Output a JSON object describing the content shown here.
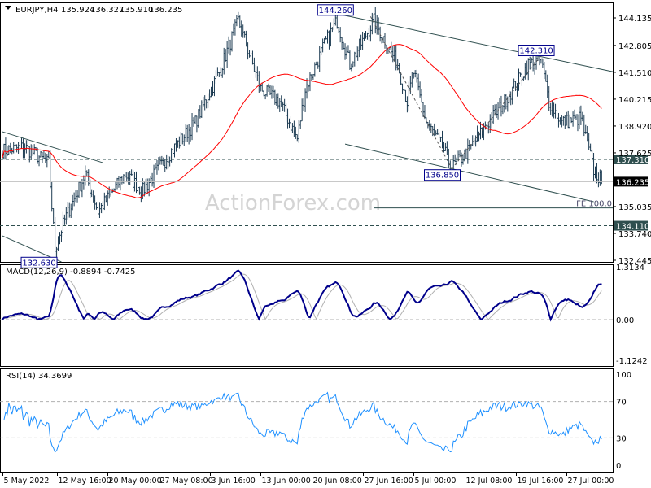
{
  "header": {
    "symbol": "EURJPY,H4",
    "open": "135.924",
    "high": "136.327",
    "low": "135.910",
    "close": "136.235"
  },
  "watermark": "ActionForex.com",
  "colors": {
    "bars": "#1c3b52",
    "ma": "#ff0000",
    "macd": "#00008b",
    "signal": "#b0b0b0",
    "rsi": "#1e90ff",
    "level_box": "#2f4f4f"
  },
  "chart_data": [
    {
      "type": "ohlc",
      "title": "EURJPY,H4",
      "y_ticks": [
        "144.135",
        "142.805",
        "141.510",
        "140.215",
        "138.920",
        "137.625",
        "135.035",
        "133.740",
        "132.445"
      ],
      "ylim": [
        132.445,
        144.135
      ],
      "x_ticks": [
        "5 May 2022",
        "12 May 16:00",
        "20 May 00:00",
        "27 May 08:00",
        "3 Jun 16:00",
        "13 Jun 00:00",
        "20 Jun 08:00",
        "27 Jun 16:00",
        "5 Jul 00:00",
        "12 Jul 08:00",
        "19 Jul 16:00",
        "27 Jul 00:00"
      ],
      "x_tick_dates": [
        "2022-05-05 00:00",
        "2022-05-12 16:00",
        "2022-05-20 00:00",
        "2022-05-27 08:00",
        "2022-06-03 16:00",
        "2022-06-13 00:00",
        "2022-06-20 08:00",
        "2022-06-27 16:00",
        "2022-07-05 00:00",
        "2022-07-12 08:00",
        "2022-07-19 16:00",
        "2022-07-27 00:00"
      ],
      "approx_close_path": [
        [
          "2022-05-05 04:00",
          137.74
        ],
        [
          "2022-05-09 08:00",
          137.9
        ],
        [
          "2022-05-11 20:00",
          137.1
        ],
        [
          "2022-05-12 12:00",
          133.0
        ],
        [
          "2022-05-13 12:00",
          134.4
        ],
        [
          "2022-05-17 16:00",
          136.6
        ],
        [
          "2022-05-19 00:00",
          134.8
        ],
        [
          "2022-05-23 20:00",
          136.6
        ],
        [
          "2022-05-25 16:00",
          135.8
        ],
        [
          "2022-05-30 16:00",
          137.7
        ],
        [
          "2022-06-02 04:00",
          139.1
        ],
        [
          "2022-06-06 16:00",
          141.5
        ],
        [
          "2022-06-08 16:00",
          144.0
        ],
        [
          "2022-06-09 16:00",
          142.6
        ],
        [
          "2022-06-13 00:00",
          140.7
        ],
        [
          "2022-06-15 00:00",
          140.1
        ],
        [
          "2022-06-16 20:00",
          138.3
        ],
        [
          "2022-06-17 16:00",
          140.7
        ],
        [
          "2022-06-21 20:00",
          143.0
        ],
        [
          "2022-06-23 00:00",
          144.0
        ],
        [
          "2022-06-24 08:00",
          141.9
        ],
        [
          "2022-06-28 20:00",
          144.0
        ],
        [
          "2022-07-01 08:00",
          141.9
        ],
        [
          "2022-07-04 08:00",
          140.1
        ],
        [
          "2022-07-05 00:00",
          141.5
        ],
        [
          "2022-07-06 08:00",
          139.1
        ],
        [
          "2022-07-08 00:00",
          137.9
        ],
        [
          "2022-07-11 00:00",
          136.9
        ],
        [
          "2022-07-12 16:00",
          137.7
        ],
        [
          "2022-07-14 20:00",
          139.1
        ],
        [
          "2022-07-18 20:00",
          140.3
        ],
        [
          "2022-07-21 00:00",
          141.9
        ],
        [
          "2022-07-22 08:00",
          142.1
        ],
        [
          "2022-07-25 04:00",
          140.1
        ],
        [
          "2022-07-26 12:00",
          139.1
        ],
        [
          "2022-07-28 12:00",
          139.3
        ],
        [
          "2022-07-29 20:00",
          136.8
        ],
        [
          "2022-08-01 16:00",
          136.235
        ]
      ],
      "price_labels": [
        {
          "text": "144.260",
          "date": "2022-06-22 20:00",
          "price": 144.26
        },
        {
          "text": "142.310",
          "date": "2022-07-21 20:00",
          "price": 142.31
        },
        {
          "text": "136.850",
          "date": "2022-07-08 00:00",
          "price": 136.85
        },
        {
          "text": "132.630",
          "date": "2022-05-10 20:00",
          "price": 132.63
        }
      ],
      "levels": [
        {
          "text": "137.310",
          "price": 137.31,
          "style": "dashed"
        },
        {
          "text": "134.110",
          "price": 134.11,
          "style": "dashed"
        }
      ],
      "current_price": "136.235",
      "fe_line": {
        "text": "FE 100.0",
        "price": 134.97,
        "from": "2022-06-28 20:00"
      },
      "trendlines": [
        {
          "from": [
            "2022-06-23 00:00",
            144.33
          ],
          "to": [
            "2022-08-02 20:00",
            141.54
          ]
        },
        {
          "from": [
            "2022-06-23 20:00",
            138.05
          ],
          "to": [
            "2022-07-29 20:00",
            135.27
          ]
        },
        {
          "from": [
            "2022-05-05 00:00",
            138.64
          ],
          "to": [
            "2022-05-19 12:00",
            137.15
          ]
        },
        {
          "from": [
            "2022-05-05 00:00",
            133.62
          ],
          "to": [
            "2022-05-13 04:00",
            132.37
          ]
        }
      ],
      "projection": [
        [
          "2022-06-28 12:00",
          144.2
        ],
        [
          "2022-07-11 00:00",
          136.85
        ],
        [
          "2022-07-22 08:00",
          142.31
        ]
      ]
    },
    {
      "type": "line",
      "title": "MACD(12,26,9) -0.8894 -0.7425",
      "y_ticks": [
        "1.3134",
        "0.00",
        "-1.1242"
      ],
      "ylim": [
        -1.1242,
        1.3134
      ]
    },
    {
      "type": "line",
      "title": "RSI(14) 34.3699",
      "y_ticks": [
        "100",
        "70",
        "30",
        "0"
      ],
      "ylim": [
        0,
        100
      ],
      "levels": [
        70,
        30
      ]
    }
  ]
}
